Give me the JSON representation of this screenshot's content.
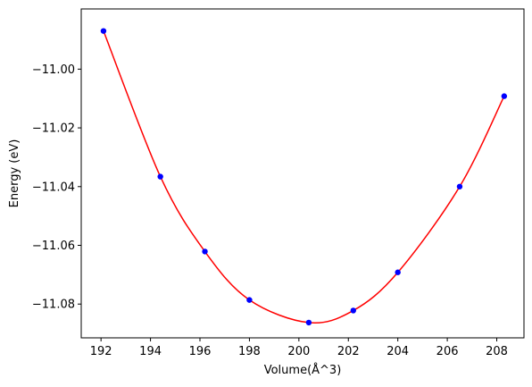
{
  "chart_data": {
    "type": "scatter",
    "xlabel": "Volume(Å^3)",
    "ylabel": "Energy (eV)",
    "xlim": [
      191.2,
      209.1
    ],
    "ylim": [
      -11.0915,
      -10.9795
    ],
    "xticks": [
      192,
      194,
      196,
      198,
      200,
      202,
      204,
      206,
      208
    ],
    "xtick_labels": [
      "192",
      "194",
      "196",
      "198",
      "200",
      "202",
      "204",
      "206",
      "208"
    ],
    "yticks": [
      -11.08,
      -11.06,
      -11.04,
      -11.02,
      -11.0
    ],
    "ytick_labels": [
      "−11.08",
      "−11.06",
      "−11.04",
      "−11.02",
      "−11.00"
    ],
    "grid": false,
    "series": [
      {
        "kind": "points",
        "color": "#0000ff",
        "x": [
          192.1,
          194.4,
          196.2,
          198.0,
          200.4,
          202.2,
          204.0,
          206.5,
          208.3
        ],
        "y": [
          -10.987,
          -11.0366,
          -11.0621,
          -11.0786,
          -11.0863,
          -11.0822,
          -11.0692,
          -11.04,
          -11.0092
        ]
      },
      {
        "kind": "fit-curve",
        "color": "#ff0000",
        "x": [
          192.1,
          194.4,
          196.2,
          198.0,
          200.4,
          202.2,
          204.0,
          206.5,
          208.3
        ],
        "y": [
          -10.987,
          -11.0366,
          -11.0621,
          -11.0786,
          -11.0863,
          -11.0822,
          -11.0692,
          -11.04,
          -11.0092
        ]
      }
    ]
  }
}
